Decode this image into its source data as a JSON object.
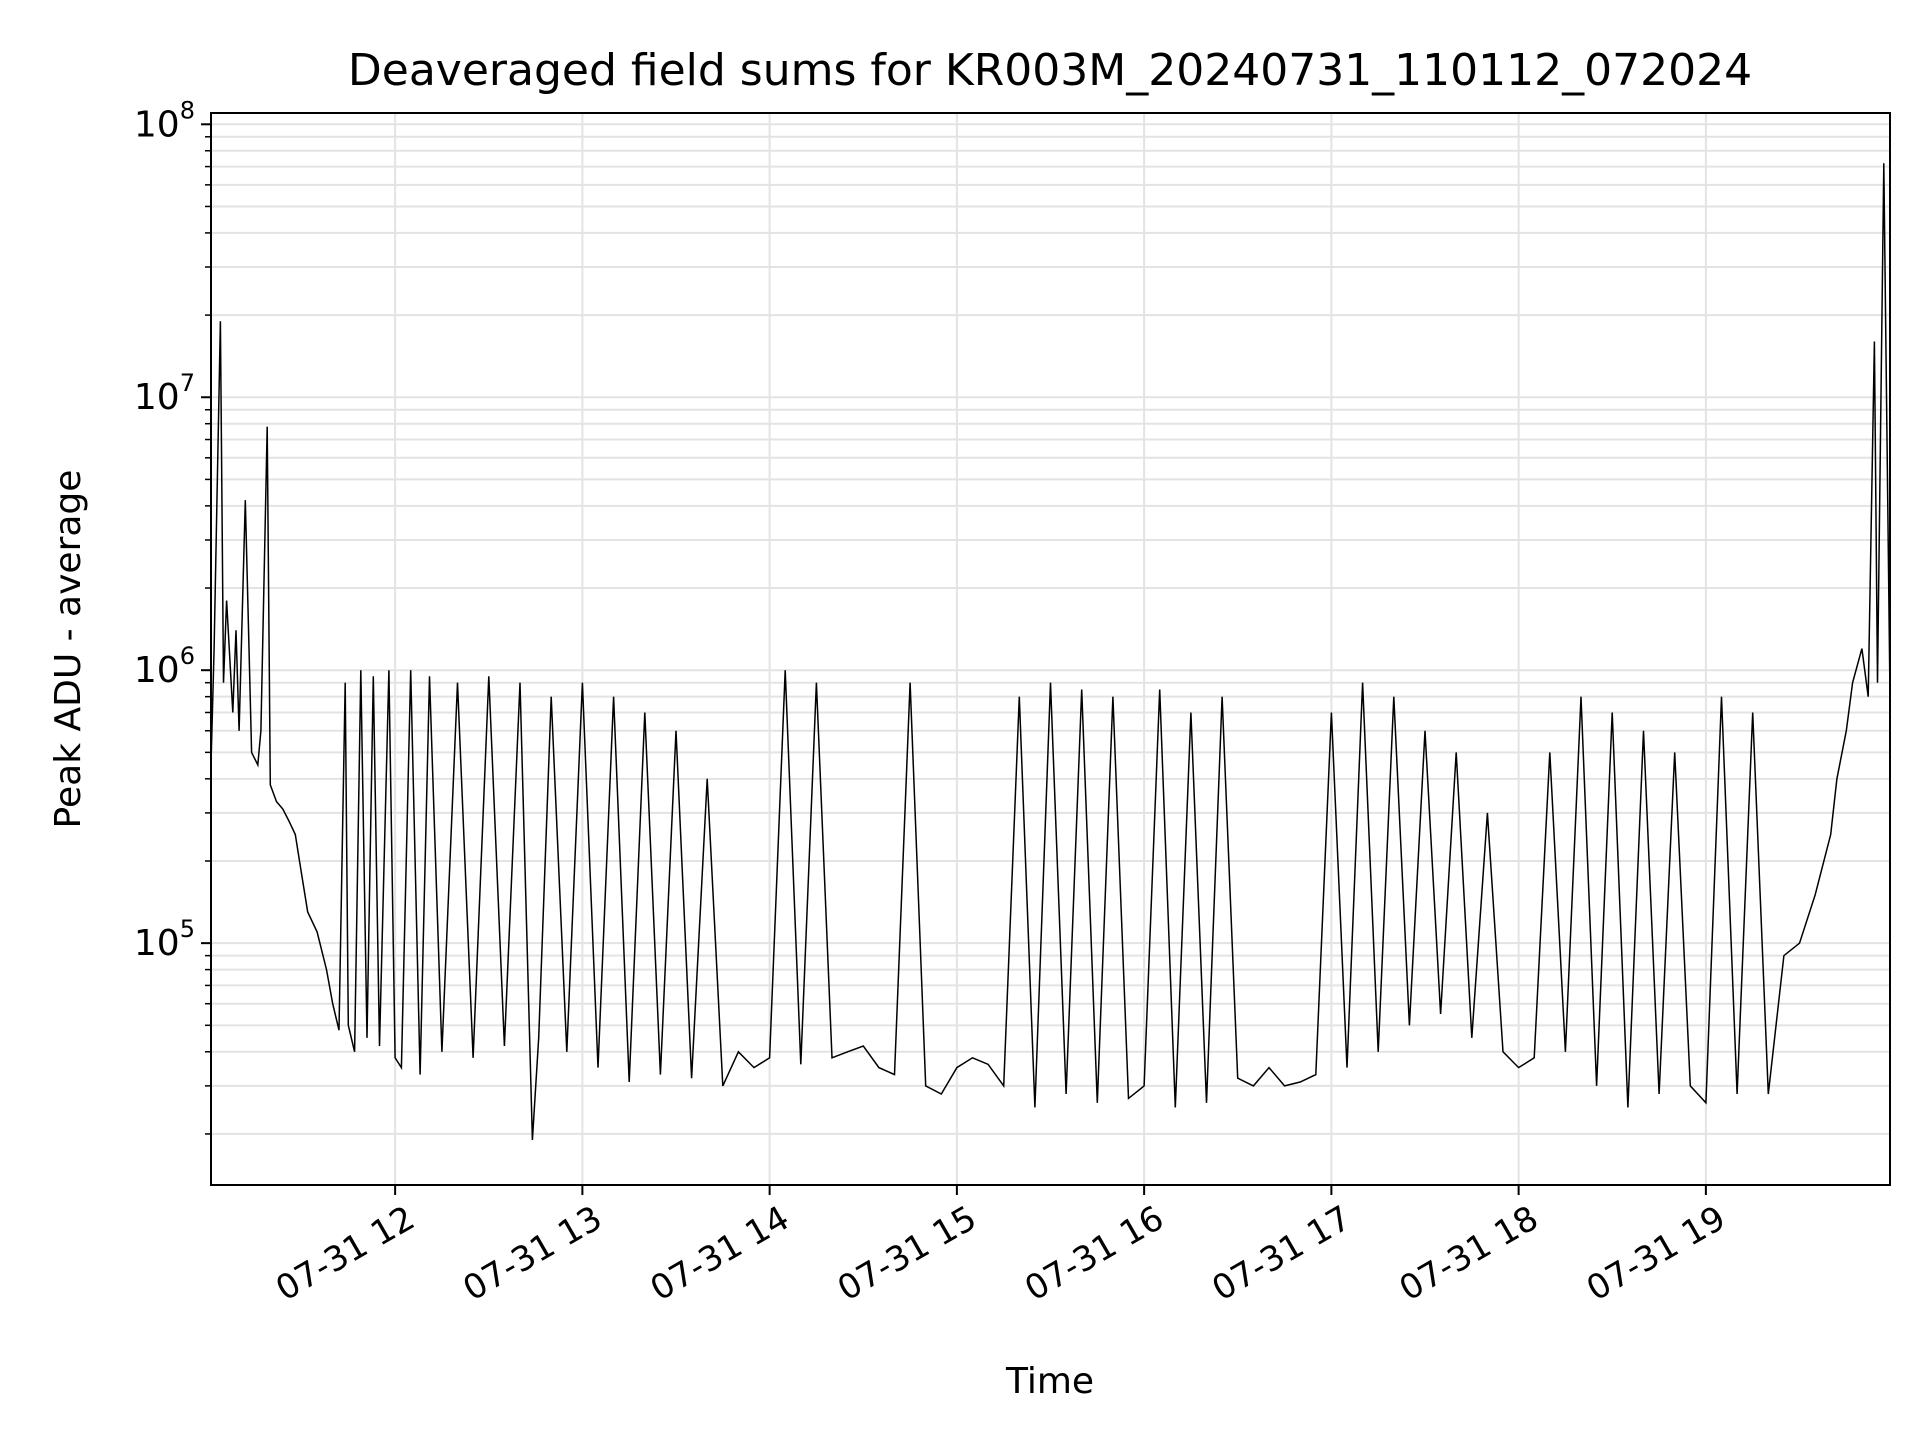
{
  "chart_data": {
    "type": "line",
    "title": "Deaveraged field sums for KR003M_20240731_110112_072024",
    "xlabel": "Time",
    "ylabel": "Peak ADU - average",
    "y_scale": "log",
    "xlim": [
      "2024-07-31 11:01",
      "2024-07-31 19:59"
    ],
    "ylim": [
      13000,
      110000000
    ],
    "grid": true,
    "line_color": "#000000",
    "x_ticks": [
      {
        "label": "07-31 12",
        "t": "2024-07-31 12:00"
      },
      {
        "label": "07-31 13",
        "t": "2024-07-31 13:00"
      },
      {
        "label": "07-31 14",
        "t": "2024-07-31 14:00"
      },
      {
        "label": "07-31 15",
        "t": "2024-07-31 15:00"
      },
      {
        "label": "07-31 16",
        "t": "2024-07-31 16:00"
      },
      {
        "label": "07-31 17",
        "t": "2024-07-31 17:00"
      },
      {
        "label": "07-31 18",
        "t": "2024-07-31 18:00"
      },
      {
        "label": "07-31 19",
        "t": "2024-07-31 19:00"
      }
    ],
    "y_ticks": [
      {
        "mantissa": "10",
        "exp": "5",
        "value": 100000
      },
      {
        "mantissa": "10",
        "exp": "6",
        "value": 1000000
      },
      {
        "mantissa": "10",
        "exp": "7",
        "value": 10000000
      },
      {
        "mantissa": "10",
        "exp": "8",
        "value": 100000000
      }
    ],
    "series": [
      {
        "x": [
          "11:01",
          "11:02",
          "11:04",
          "11:05",
          "11:06",
          "11:08",
          "11:09",
          "11:10",
          "11:12",
          "11:14",
          "11:16",
          "11:17",
          "11:19",
          "11:20",
          "11:22",
          "11:24",
          "11:26",
          "11:28",
          "11:30",
          "11:32",
          "11:35",
          "11:38",
          "11:40",
          "11:42",
          "11:44",
          "11:45",
          "11:47",
          "11:49",
          "11:51",
          "11:53",
          "11:55",
          "11:58",
          "12:00",
          "12:02",
          "12:05",
          "12:08",
          "12:11",
          "12:15",
          "12:20",
          "12:25",
          "12:30",
          "12:35",
          "12:40",
          "12:44",
          "12:46",
          "12:50",
          "12:55",
          "13:00",
          "13:05",
          "13:10",
          "13:15",
          "13:20",
          "13:25",
          "13:30",
          "13:35",
          "13:40",
          "13:45",
          "13:50",
          "13:55",
          "14:00",
          "14:05",
          "14:10",
          "14:15",
          "14:20",
          "14:25",
          "14:30",
          "14:35",
          "14:40",
          "14:45",
          "14:50",
          "14:55",
          "15:00",
          "15:05",
          "15:10",
          "15:15",
          "15:20",
          "15:25",
          "15:30",
          "15:35",
          "15:40",
          "15:45",
          "15:50",
          "15:55",
          "16:00",
          "16:05",
          "16:10",
          "16:15",
          "16:20",
          "16:25",
          "16:30",
          "16:35",
          "16:40",
          "16:45",
          "16:50",
          "16:55",
          "17:00",
          "17:05",
          "17:10",
          "17:15",
          "17:20",
          "17:25",
          "17:30",
          "17:35",
          "17:40",
          "17:45",
          "17:50",
          "17:55",
          "18:00",
          "18:05",
          "18:10",
          "18:15",
          "18:20",
          "18:25",
          "18:30",
          "18:35",
          "18:40",
          "18:45",
          "18:50",
          "18:55",
          "19:00",
          "19:05",
          "19:10",
          "19:15",
          "19:20",
          "19:25",
          "19:30",
          "19:35",
          "19:40",
          "19:42",
          "19:45",
          "19:47",
          "19:50",
          "19:52",
          "19:54",
          "19:55",
          "19:57",
          "19:59"
        ],
        "y": [
          450000,
          1200000,
          19000000,
          900000,
          1800000,
          700000,
          1400000,
          600000,
          4200000,
          500000,
          450000,
          600000,
          7800000,
          380000,
          330000,
          310000,
          280000,
          250000,
          180000,
          130000,
          110000,
          80000,
          60000,
          48000,
          900000,
          50000,
          40000,
          1000000,
          45000,
          950000,
          42000,
          1000000,
          38000,
          35000,
          1000000,
          33000,
          950000,
          40000,
          900000,
          38000,
          950000,
          42000,
          900000,
          19000,
          45000,
          800000,
          40000,
          900000,
          35000,
          800000,
          31000,
          700000,
          33000,
          600000,
          32000,
          400000,
          30000,
          40000,
          35000,
          38000,
          1000000,
          36000,
          900000,
          38000,
          40000,
          42000,
          35000,
          33000,
          900000,
          30000,
          28000,
          35000,
          38000,
          36000,
          30000,
          800000,
          25000,
          900000,
          28000,
          850000,
          26000,
          800000,
          27000,
          30000,
          850000,
          25000,
          700000,
          26000,
          800000,
          32000,
          30000,
          35000,
          30000,
          31000,
          33000,
          700000,
          35000,
          900000,
          40000,
          800000,
          50000,
          600000,
          55000,
          500000,
          45000,
          300000,
          40000,
          35000,
          38000,
          500000,
          40000,
          800000,
          30000,
          700000,
          25000,
          600000,
          28000,
          500000,
          30000,
          26000,
          800000,
          28000,
          700000,
          28000,
          90000,
          100000,
          150000,
          250000,
          400000,
          600000,
          900000,
          1200000,
          800000,
          16000000,
          900000,
          72000000,
          800000
        ]
      }
    ]
  }
}
